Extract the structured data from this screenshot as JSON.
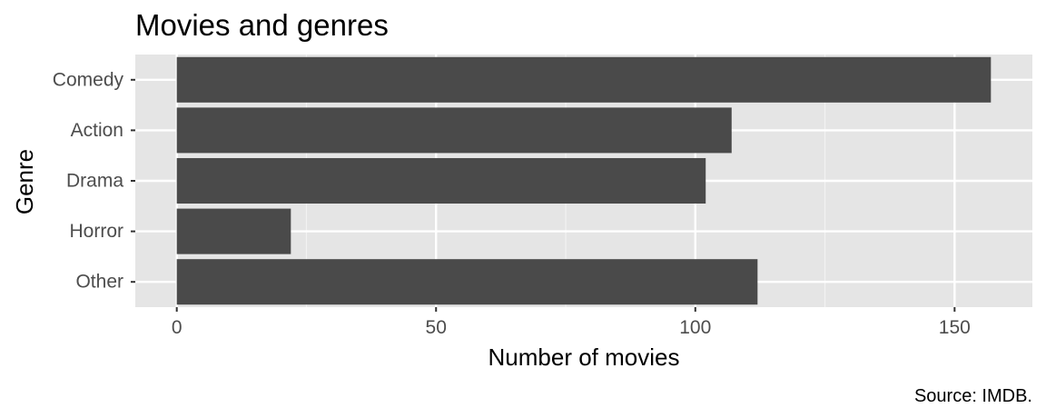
{
  "chart_data": {
    "type": "bar",
    "orientation": "horizontal",
    "title": "Movies and genres",
    "xlabel": "Number of movies",
    "ylabel": "Genre",
    "caption": "Source: IMDB.",
    "categories": [
      "Comedy",
      "Action",
      "Drama",
      "Horror",
      "Other"
    ],
    "values": [
      157,
      107,
      102,
      22,
      112
    ],
    "xlim": [
      -8,
      165
    ],
    "x_ticks": [
      0,
      50,
      100,
      150
    ],
    "x_tick_labels": [
      "0",
      "50",
      "100",
      "150"
    ],
    "grid": true,
    "legend": "none",
    "colors": {
      "panel_background": "#e5e5e5",
      "grid_major": "#ffffff",
      "grid_minor": "#f2f2f2",
      "bar_fill": "#4a4a4a",
      "tick_text": "#4d4d4d",
      "tick_mark": "#333333"
    }
  }
}
